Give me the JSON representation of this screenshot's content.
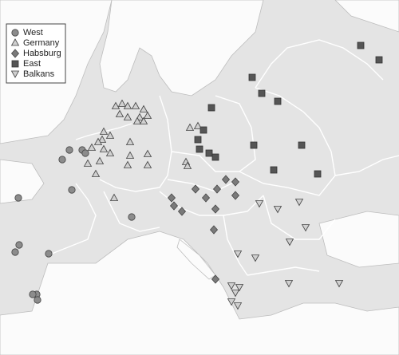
{
  "legend": {
    "items": [
      {
        "label": "West"
      },
      {
        "label": "Germany"
      },
      {
        "label": "Habsburg"
      },
      {
        "label": "East"
      },
      {
        "label": "Balkans"
      }
    ]
  }
}
